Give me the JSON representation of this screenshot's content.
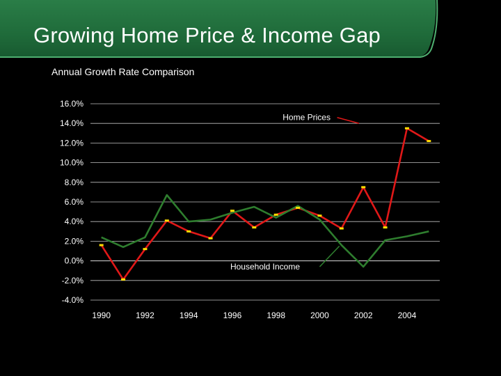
{
  "slide": {
    "title": "Growing Home Price & Income Gap",
    "subtitle": "Annual Growth Rate Comparison"
  },
  "colors": {
    "background": "#000000",
    "header_green": "#1f6b3a",
    "header_highlight": "#3f9a5c",
    "home_prices_line": "#e01818",
    "household_income_line": "#2e7d2e",
    "marker": "#ffe000",
    "gridline": "#bfbfbf",
    "text": "#ffffff"
  },
  "chart_data": {
    "type": "line",
    "title": "Annual Growth Rate Comparison",
    "xlabel": "",
    "ylabel": "",
    "ylim": [
      -4.0,
      16.0
    ],
    "yticks": [
      "16.0%",
      "14.0%",
      "12.0%",
      "10.0%",
      "8.0%",
      "6.0%",
      "4.0%",
      "2.0%",
      "0.0%",
      "-2.0%",
      "-4.0%"
    ],
    "ytick_values": [
      16,
      14,
      12,
      10,
      8,
      6,
      4,
      2,
      0,
      -2,
      -4
    ],
    "xticks": [
      "1990",
      "1992",
      "1994",
      "1996",
      "1998",
      "2000",
      "2002",
      "2004"
    ],
    "xtick_values": [
      1990,
      1992,
      1994,
      1996,
      1998,
      2000,
      2002,
      2004
    ],
    "xlim": [
      1989.5,
      2005.5
    ],
    "grid": true,
    "series": [
      {
        "name": "Home Prices",
        "color": "#e01818",
        "markers": true,
        "x": [
          1990,
          1991,
          1992,
          1993,
          1994,
          1995,
          1996,
          1997,
          1998,
          1999,
          2000,
          2001,
          2002,
          2003,
          2004,
          2005
        ],
        "values": [
          1.6,
          -1.9,
          1.2,
          4.1,
          3.0,
          2.3,
          5.1,
          3.4,
          4.7,
          5.4,
          4.6,
          3.3,
          7.5,
          3.4,
          13.5,
          12.2
        ]
      },
      {
        "name": "Household Income",
        "color": "#2e7d2e",
        "markers": false,
        "x": [
          1990,
          1991,
          1992,
          1993,
          1994,
          1995,
          1996,
          1997,
          1998,
          1999,
          2000,
          2001,
          2002,
          2003,
          2004,
          2005
        ],
        "values": [
          2.4,
          1.4,
          2.4,
          6.7,
          4.0,
          4.2,
          4.9,
          5.5,
          4.4,
          5.6,
          4.2,
          1.6,
          -0.6,
          2.1,
          2.5,
          3.0
        ]
      }
    ],
    "annotations": [
      {
        "text": "Home Prices",
        "series": "Home Prices",
        "arrow_from": 2000.8,
        "arrow_to_x": 2001.8,
        "label_anchor_x": 1999.4,
        "label_anchor_y": 14.6,
        "arrow_tip_y": 14.0
      },
      {
        "text": "Household Income",
        "series": "Household Income",
        "arrow_from": 2000.0,
        "arrow_to_x": 2000.9,
        "label_anchor_x": 1997.5,
        "label_anchor_y": -0.6,
        "arrow_tip_y": 1.5
      }
    ]
  }
}
